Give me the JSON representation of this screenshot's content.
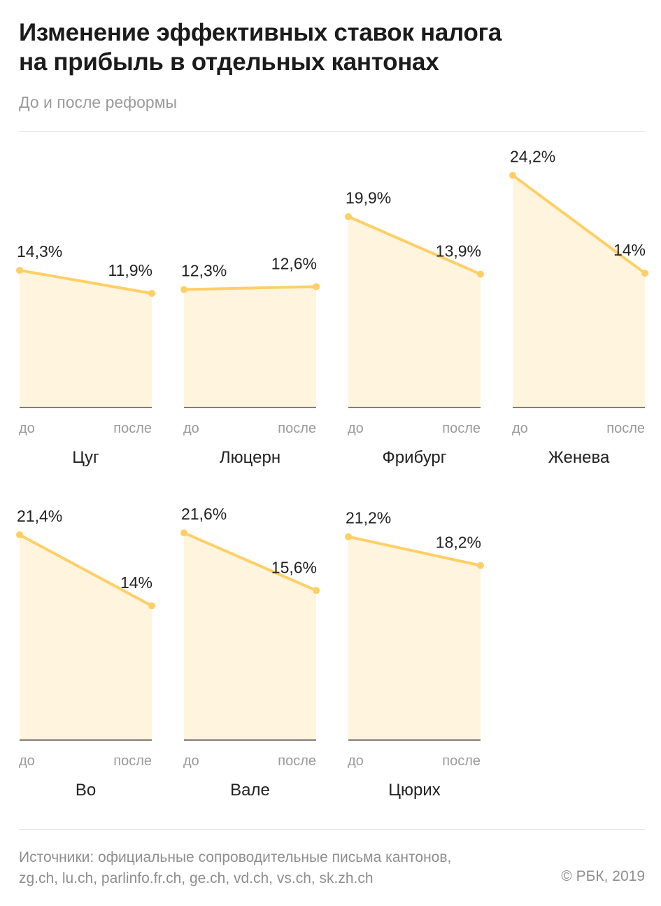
{
  "header": {
    "title_line1": "Изменение эффективных ставок налога",
    "title_line2": "на прибыль в отдельных кантонах",
    "subtitle": "До и после реформы"
  },
  "colors": {
    "line": "#ffcf66",
    "fill": "#fff4de",
    "baseline": "#555555",
    "axis_text": "#9a9a9a",
    "label_text": "#222222"
  },
  "chart_data": {
    "type": "area",
    "x_labels": [
      "до",
      "после"
    ],
    "ylim": [
      0,
      24.2
    ],
    "grid": false,
    "panels": [
      {
        "name": "Цуг",
        "values": [
          14.3,
          11.9
        ],
        "labels": [
          "14,3%",
          "11,9%"
        ]
      },
      {
        "name": "Люцерн",
        "values": [
          12.3,
          12.6
        ],
        "labels": [
          "12,3%",
          "12,6%"
        ]
      },
      {
        "name": "Фрибург",
        "values": [
          19.9,
          13.9
        ],
        "labels": [
          "19,9%",
          "13,9%"
        ]
      },
      {
        "name": "Женева",
        "values": [
          24.2,
          14
        ],
        "labels": [
          "24,2%",
          "14%"
        ]
      },
      {
        "name": "Во",
        "values": [
          21.4,
          14
        ],
        "labels": [
          "21,4%",
          "14%"
        ]
      },
      {
        "name": "Вале",
        "values": [
          21.6,
          15.6
        ],
        "labels": [
          "21,6%",
          "15,6%"
        ]
      },
      {
        "name": "Цюрих",
        "values": [
          21.2,
          18.2
        ],
        "labels": [
          "21,2%",
          "18,2%"
        ]
      }
    ]
  },
  "footer": {
    "sources_line1": "Источники: официальные сопроводительные письма кантонов,",
    "sources_line2": "zg.ch, lu.ch, parlinfo.fr.ch, ge.ch, vd.ch, vs.ch, sk.zh.ch",
    "copyright": "© РБК, 2019"
  }
}
